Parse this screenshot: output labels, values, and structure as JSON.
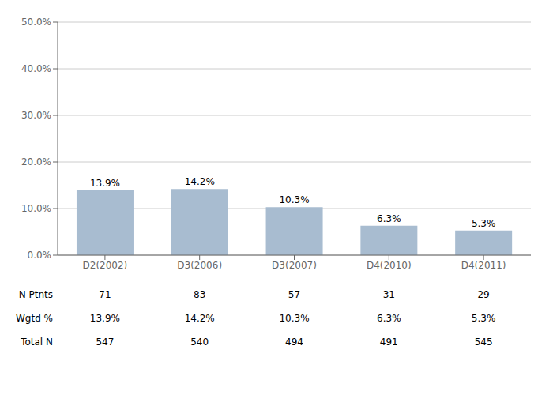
{
  "chart_data": {
    "type": "bar",
    "categories": [
      "D2(2002)",
      "D3(2006)",
      "D3(2007)",
      "D4(2010)",
      "D4(2011)"
    ],
    "values": [
      13.9,
      14.2,
      10.3,
      6.3,
      5.3
    ],
    "value_labels": [
      "13.9%",
      "14.2%",
      "10.3%",
      "6.3%",
      "5.3%"
    ],
    "data_labels": true,
    "color": "#a8bcd0",
    "ylim": [
      0,
      50
    ],
    "yticks": [
      {
        "value": 0,
        "label": "0.0%"
      },
      {
        "value": 10,
        "label": "10.0%"
      },
      {
        "value": 20,
        "label": "20.0%"
      },
      {
        "value": 30,
        "label": "30.0%"
      },
      {
        "value": 40,
        "label": "40.0%"
      },
      {
        "value": 50,
        "label": "50.0%"
      }
    ],
    "grid": true,
    "table": [
      {
        "label": "N Ptnts",
        "values": [
          71,
          83,
          57,
          31,
          29
        ]
      },
      {
        "label": "Wgtd %",
        "values": [
          13.9,
          14.2,
          10.3,
          6.3,
          5.3
        ],
        "value_labels": [
          "13.9%",
          "14.2%",
          "10.3%",
          "6.3%",
          "5.3%"
        ]
      },
      {
        "label": "Total N",
        "values": [
          547,
          540,
          494,
          491,
          545
        ]
      }
    ]
  }
}
